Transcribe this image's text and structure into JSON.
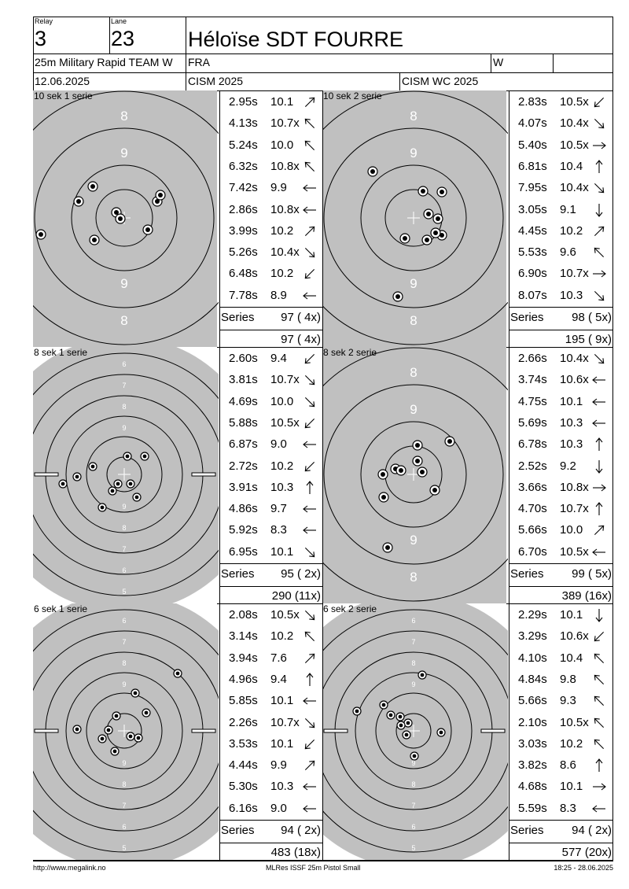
{
  "header": {
    "relay_label": "Relay",
    "relay": "3",
    "lane_label": "Lane",
    "lane": "23",
    "name": "Héloïse SDT FOURRE",
    "event": "25m Military Rapid TEAM W",
    "nation": "FRA",
    "gender": "W",
    "date": "12.06.2025",
    "competition": "CISM 2025",
    "match": "CISM WC 2025"
  },
  "series": [
    {
      "title": "10 sek 1 serie",
      "target": "precision",
      "shots": [
        {
          "time": "2.95s",
          "score": "10.1",
          "dir": "ne"
        },
        {
          "time": "4.13s",
          "score": "10.7x",
          "dir": "nw"
        },
        {
          "time": "5.24s",
          "score": "10.0",
          "dir": "nw"
        },
        {
          "time": "6.32s",
          "score": "10.8x",
          "dir": "nw"
        },
        {
          "time": "7.42s",
          "score": "9.9",
          "dir": "w"
        },
        {
          "time": "2.86s",
          "score": "10.8x",
          "dir": "w"
        },
        {
          "time": "3.99s",
          "score": "10.2",
          "dir": "ne"
        },
        {
          "time": "5.26s",
          "score": "10.4x",
          "dir": "se"
        },
        {
          "time": "6.48s",
          "score": "10.2",
          "dir": "sw"
        },
        {
          "time": "7.78s",
          "score": "8.9",
          "dir": "w"
        }
      ],
      "series_label": "Series",
      "series_total": "97 ( 4x)",
      "running_total": "97 ( 4x)"
    },
    {
      "title": "10 sek 2 serie",
      "target": "precision",
      "shots": [
        {
          "time": "2.83s",
          "score": "10.5x",
          "dir": "sw"
        },
        {
          "time": "4.07s",
          "score": "10.4x",
          "dir": "se"
        },
        {
          "time": "5.40s",
          "score": "10.5x",
          "dir": "e"
        },
        {
          "time": "6.81s",
          "score": "10.4",
          "dir": "n"
        },
        {
          "time": "7.95s",
          "score": "10.4x",
          "dir": "se"
        },
        {
          "time": "3.05s",
          "score": "9.1",
          "dir": "s"
        },
        {
          "time": "4.45s",
          "score": "10.2",
          "dir": "ne"
        },
        {
          "time": "5.53s",
          "score": "9.6",
          "dir": "nw"
        },
        {
          "time": "6.90s",
          "score": "10.7x",
          "dir": "e"
        },
        {
          "time": "8.07s",
          "score": "10.3",
          "dir": "se"
        }
      ],
      "series_label": "Series",
      "series_total": "98 ( 5x)",
      "running_total": "195 ( 9x)"
    },
    {
      "title": "8 sek 1 serie",
      "target": "rapid",
      "shots": [
        {
          "time": "2.60s",
          "score": "9.4",
          "dir": "sw"
        },
        {
          "time": "3.81s",
          "score": "10.7x",
          "dir": "se"
        },
        {
          "time": "4.69s",
          "score": "10.0",
          "dir": "se"
        },
        {
          "time": "5.88s",
          "score": "10.5x",
          "dir": "sw"
        },
        {
          "time": "6.87s",
          "score": "9.0",
          "dir": "w"
        },
        {
          "time": "2.72s",
          "score": "10.2",
          "dir": "sw"
        },
        {
          "time": "3.91s",
          "score": "10.3",
          "dir": "n"
        },
        {
          "time": "4.86s",
          "score": "9.7",
          "dir": "w"
        },
        {
          "time": "5.92s",
          "score": "8.3",
          "dir": "w"
        },
        {
          "time": "6.95s",
          "score": "10.1",
          "dir": "se"
        }
      ],
      "series_label": "Series",
      "series_total": "95 ( 2x)",
      "running_total": "290 (11x)"
    },
    {
      "title": "8 sek 2 serie",
      "target": "precision",
      "shots": [
        {
          "time": "2.66s",
          "score": "10.4x",
          "dir": "se"
        },
        {
          "time": "3.74s",
          "score": "10.6x",
          "dir": "w"
        },
        {
          "time": "4.75s",
          "score": "10.1",
          "dir": "w"
        },
        {
          "time": "5.69s",
          "score": "10.3",
          "dir": "w"
        },
        {
          "time": "6.78s",
          "score": "10.3",
          "dir": "n"
        },
        {
          "time": "2.52s",
          "score": "9.2",
          "dir": "s"
        },
        {
          "time": "3.66s",
          "score": "10.8x",
          "dir": "e"
        },
        {
          "time": "4.70s",
          "score": "10.7x",
          "dir": "n"
        },
        {
          "time": "5.66s",
          "score": "10.0",
          "dir": "ne"
        },
        {
          "time": "6.70s",
          "score": "10.5x",
          "dir": "w"
        }
      ],
      "series_label": "Series",
      "series_total": "99 ( 5x)",
      "running_total": "389 (16x)"
    },
    {
      "title": "6 sek 1 serie",
      "target": "rapid",
      "shots": [
        {
          "time": "2.08s",
          "score": "10.5x",
          "dir": "se"
        },
        {
          "time": "3.14s",
          "score": "10.2",
          "dir": "nw"
        },
        {
          "time": "3.94s",
          "score": "7.6",
          "dir": "ne"
        },
        {
          "time": "4.96s",
          "score": "9.4",
          "dir": "n"
        },
        {
          "time": "5.85s",
          "score": "10.1",
          "dir": "w"
        },
        {
          "time": "2.26s",
          "score": "10.7x",
          "dir": "se"
        },
        {
          "time": "3.53s",
          "score": "10.1",
          "dir": "sw"
        },
        {
          "time": "4.44s",
          "score": "9.9",
          "dir": "ne"
        },
        {
          "time": "5.30s",
          "score": "10.3",
          "dir": "w"
        },
        {
          "time": "6.16s",
          "score": "9.0",
          "dir": "w"
        }
      ],
      "series_label": "Series",
      "series_total": "94 ( 2x)",
      "running_total": "483 (18x)"
    },
    {
      "title": "6 sek 2 serie",
      "target": "rapid",
      "shots": [
        {
          "time": "2.29s",
          "score": "10.1",
          "dir": "s"
        },
        {
          "time": "3.29s",
          "score": "10.6x",
          "dir": "sw"
        },
        {
          "time": "4.10s",
          "score": "10.4",
          "dir": "nw"
        },
        {
          "time": "4.84s",
          "score": "9.8",
          "dir": "nw"
        },
        {
          "time": "5.66s",
          "score": "9.3",
          "dir": "nw"
        },
        {
          "time": "2.10s",
          "score": "10.5x",
          "dir": "nw"
        },
        {
          "time": "3.03s",
          "score": "10.2",
          "dir": "nw"
        },
        {
          "time": "3.82s",
          "score": "8.6",
          "dir": "n"
        },
        {
          "time": "4.68s",
          "score": "10.1",
          "dir": "e"
        },
        {
          "time": "5.59s",
          "score": "8.3",
          "dir": "w"
        }
      ],
      "series_label": "Series",
      "series_total": "94 ( 2x)",
      "running_total": "577 (20x)"
    }
  ],
  "footer": {
    "left": "http://www.megalink.no",
    "center": "MLRes ISSF 25m Pistol Small",
    "right": "18:25 - 28.06.2025"
  }
}
